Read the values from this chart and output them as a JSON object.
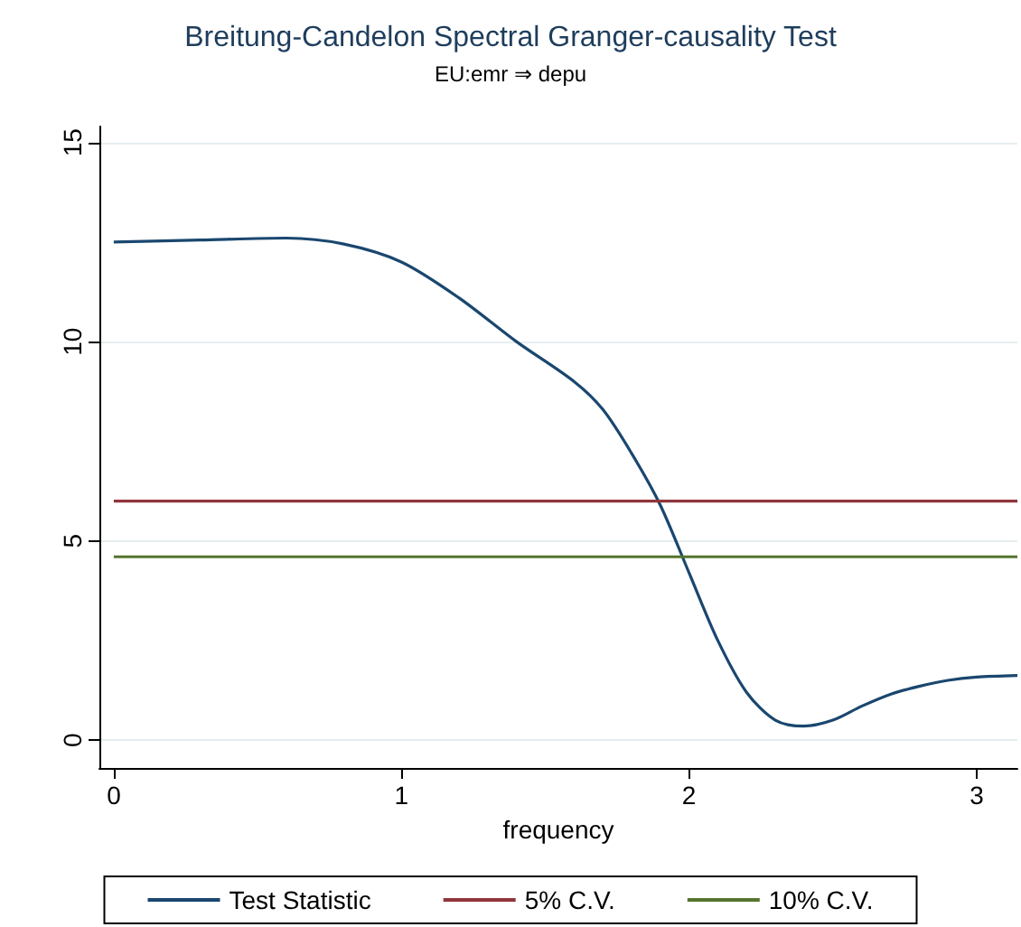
{
  "chart_data": {
    "type": "line",
    "title": "Breitung-Candelon Spectral Granger-causality Test",
    "subtitle": "EU:emr ⇒ depu",
    "xlabel": "frequency",
    "xlim": [
      -0.05,
      3.1416
    ],
    "xticks": [
      0,
      1,
      2,
      3
    ],
    "ylim": [
      -0.7,
      15.4
    ],
    "yticks": [
      0,
      5,
      10,
      15
    ],
    "grid": "y",
    "legend": "bottom",
    "marker": "none",
    "line_style": "solid",
    "series": [
      {
        "name": "Test Statistic",
        "color": "#1a476f",
        "x": [
          0,
          0.3,
          0.6,
          0.8,
          1.0,
          1.2,
          1.4,
          1.6,
          1.7,
          1.8,
          1.9,
          2.0,
          2.1,
          2.2,
          2.3,
          2.4,
          2.5,
          2.6,
          2.7,
          2.8,
          2.9,
          3.0,
          3.1416
        ],
        "values": [
          12.5,
          12.55,
          12.6,
          12.45,
          12.0,
          11.1,
          10.0,
          9.0,
          8.3,
          7.2,
          5.9,
          4.2,
          2.5,
          1.2,
          0.5,
          0.35,
          0.5,
          0.85,
          1.15,
          1.35,
          1.5,
          1.58,
          1.62
        ]
      },
      {
        "name": "5% C.V.",
        "color": "#90353b",
        "x": [
          0,
          3.1416
        ],
        "values": [
          6,
          6
        ]
      },
      {
        "name": "10% C.V.",
        "color": "#55752f",
        "x": [
          0,
          3.1416
        ],
        "values": [
          4.6,
          4.6
        ]
      }
    ]
  }
}
